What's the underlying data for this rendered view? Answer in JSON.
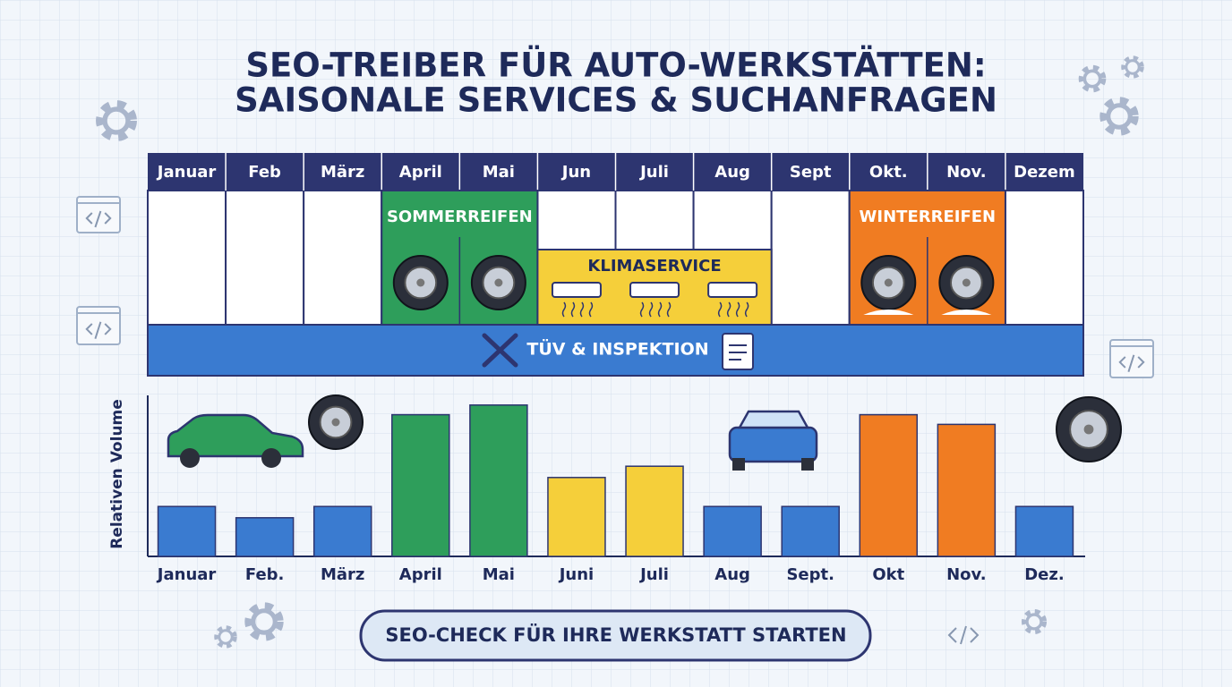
{
  "header": {
    "title_lines": [
      "SEO-TREIBER FÜR AUTO-WERKSTÄTTEN:",
      "SAISONALE SERVICES & SUCHANFRAGEN"
    ]
  },
  "timeline": {
    "months": [
      "Januar",
      "Feb",
      "März",
      "April",
      "Mai",
      "Jun",
      "Juli",
      "Aug",
      "Sept",
      "Okt.",
      "Nov.",
      "Dezem"
    ],
    "services": [
      "SOMMERREIFEN",
      "KLIMASERVICE",
      "WINTERREIFEN",
      "TÜV & INSPEKTION"
    ]
  },
  "chart_data": {
    "type": "bar",
    "y_label": "Relativen Volume",
    "categories": [
      "Januar",
      "Feb.",
      "März",
      "April",
      "Mai",
      "Juni",
      "Juli",
      "Aug",
      "Sept.",
      "Okt",
      "Nov.",
      "Dez."
    ],
    "values": [
      31,
      24,
      31,
      88,
      94,
      49,
      56,
      31,
      31,
      88,
      82,
      31
    ],
    "colors": [
      "#3a7bd0",
      "#3a7bd0",
      "#3a7bd0",
      "#2e9e5b",
      "#2e9e5b",
      "#f5cf3a",
      "#f5cf3a",
      "#3a7bd0",
      "#3a7bd0",
      "#f07c22",
      "#f07c22",
      "#3a7bd0"
    ],
    "ylim": [
      0,
      100
    ]
  },
  "button": {
    "label": "SEO-CHECK FÜR IHRE WERKSTATT STARTEN"
  }
}
